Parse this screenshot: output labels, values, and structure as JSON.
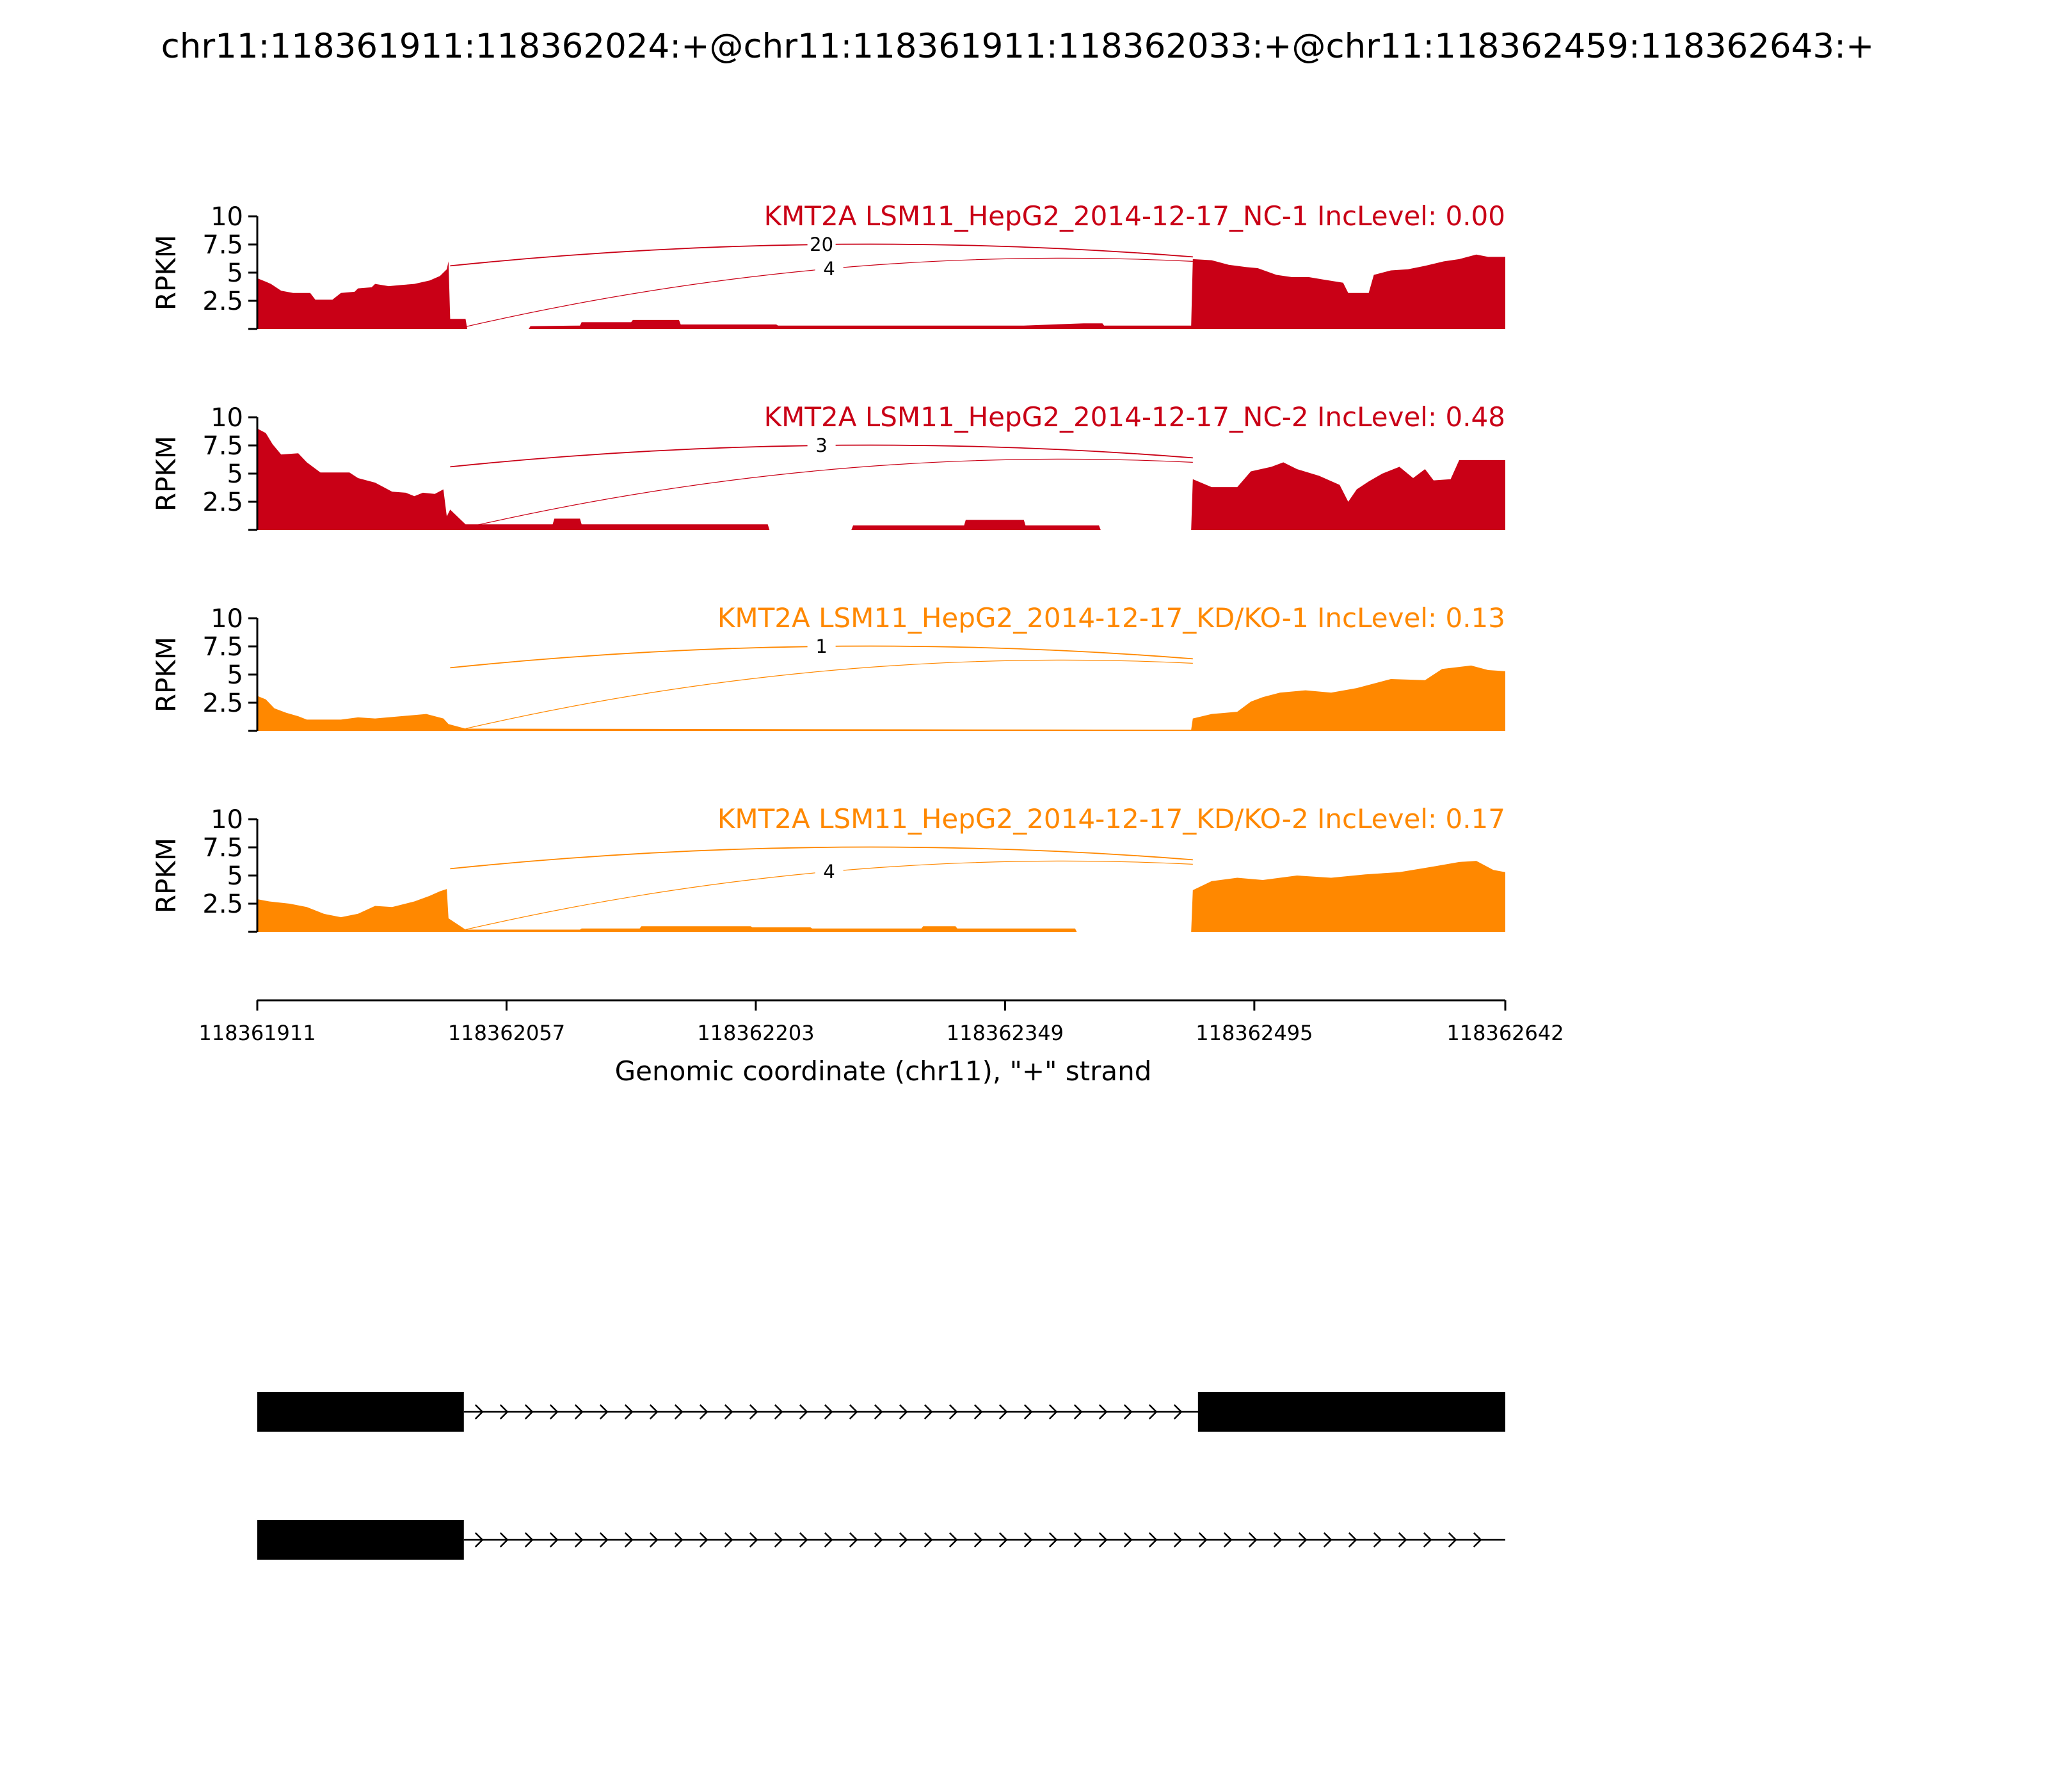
{
  "chart_data": {
    "type": "area",
    "title": "chr11:118361911:118362024:+@chr11:118361911:118362033:+@chr11:118362459:118362643:+",
    "ylabel": "RPKM",
    "xlabel": "Genomic coordinate (chr11), \"+\" strand",
    "xlim": [
      118361911,
      118362642
    ],
    "ylim": [
      0,
      10
    ],
    "x_ticks": [
      118361911,
      118362057,
      118362203,
      118362349,
      118362495,
      118362642
    ],
    "y_ticks": [
      2.5,
      5,
      7.5,
      10
    ],
    "y_tick_labels": [
      "2.5",
      "5",
      "7.5",
      "10"
    ],
    "colors": {
      "NC": "#c90016",
      "KD": "#ff8800"
    },
    "panels": [
      {
        "label": "KMT2A LSM11_HepG2_2014-12-17_NC-1 IncLevel: 0.00",
        "group": "NC",
        "coverage": [
          [
            118361911,
            4.5
          ],
          [
            118361916,
            4.2
          ],
          [
            118361919,
            4.0
          ],
          [
            118361925,
            3.4
          ],
          [
            118361932,
            3.2
          ],
          [
            118361942,
            3.2
          ],
          [
            118361945,
            2.6
          ],
          [
            118361955,
            2.6
          ],
          [
            118361960,
            3.2
          ],
          [
            118361968,
            3.3
          ],
          [
            118361970,
            3.6
          ],
          [
            118361978,
            3.7
          ],
          [
            118361980,
            4.0
          ],
          [
            118361988,
            3.8
          ],
          [
            118361995,
            3.9
          ],
          [
            118362003,
            4.0
          ],
          [
            118362012,
            4.3
          ],
          [
            118362018,
            4.7
          ],
          [
            118362022,
            5.3
          ],
          [
            118362023,
            6.0
          ],
          [
            118362024,
            0.9
          ],
          [
            118362033,
            0.9
          ],
          [
            118362034,
            0.0
          ],
          [
            118362070,
            0.0
          ],
          [
            118362071,
            0.25
          ],
          [
            118362100,
            0.3
          ],
          [
            118362101,
            0.6
          ],
          [
            118362130,
            0.6
          ],
          [
            118362131,
            0.8
          ],
          [
            118362158,
            0.8
          ],
          [
            118362159,
            0.4
          ],
          [
            118362215,
            0.4
          ],
          [
            118362216,
            0.3
          ],
          [
            118362260,
            0.3
          ],
          [
            118362275,
            0.3
          ],
          [
            118362320,
            0.3
          ],
          [
            118362360,
            0.3
          ],
          [
            118362395,
            0.5
          ],
          [
            118362406,
            0.5
          ],
          [
            118362407,
            0.3
          ],
          [
            118362458,
            0.3
          ],
          [
            118362459,
            6.2
          ],
          [
            118362470,
            6.1
          ],
          [
            118362480,
            5.7
          ],
          [
            118362490,
            5.5
          ],
          [
            118362497,
            5.4
          ],
          [
            118362508,
            4.8
          ],
          [
            118362517,
            4.6
          ],
          [
            118362527,
            4.6
          ],
          [
            118362535,
            4.4
          ],
          [
            118362547,
            4.1
          ],
          [
            118362550,
            3.2
          ],
          [
            118362562,
            3.2
          ],
          [
            118362565,
            4.8
          ],
          [
            118362575,
            5.2
          ],
          [
            118362585,
            5.3
          ],
          [
            118362595,
            5.6
          ],
          [
            118362606,
            6.0
          ],
          [
            118362615,
            6.2
          ],
          [
            118362625,
            6.6
          ],
          [
            118362632,
            6.4
          ],
          [
            118362642,
            6.4
          ]
        ],
        "junctions": [
          {
            "count": "20",
            "start": 118362024,
            "end": 118362459
          },
          {
            "count": "4",
            "start": 118362033,
            "end": 118362459
          }
        ]
      },
      {
        "label": "KMT2A LSM11_HepG2_2014-12-17_NC-2 IncLevel: 0.48",
        "group": "NC",
        "coverage": [
          [
            118361911,
            9.0
          ],
          [
            118361916,
            8.6
          ],
          [
            118361920,
            7.6
          ],
          [
            118361925,
            6.7
          ],
          [
            118361935,
            6.8
          ],
          [
            118361940,
            6.0
          ],
          [
            118361948,
            5.1
          ],
          [
            118361965,
            5.1
          ],
          [
            118361970,
            4.6
          ],
          [
            118361980,
            4.2
          ],
          [
            118361990,
            3.4
          ],
          [
            118361998,
            3.3
          ],
          [
            118362003,
            3.0
          ],
          [
            118362008,
            3.3
          ],
          [
            118362015,
            3.2
          ],
          [
            118362020,
            3.6
          ],
          [
            118362022,
            1.2
          ],
          [
            118362024,
            1.8
          ],
          [
            118362033,
            0.5
          ],
          [
            118362084,
            0.5
          ],
          [
            118362085,
            1.0
          ],
          [
            118362100,
            1.0
          ],
          [
            118362101,
            0.5
          ],
          [
            118362210,
            0.5
          ],
          [
            118362211,
            0.0
          ],
          [
            118362259,
            0.0
          ],
          [
            118362260,
            0.4
          ],
          [
            118362325,
            0.4
          ],
          [
            118362326,
            0.9
          ],
          [
            118362360,
            0.9
          ],
          [
            118362361,
            0.4
          ],
          [
            118362404,
            0.4
          ],
          [
            118362405,
            0.0
          ],
          [
            118362458,
            0.0
          ],
          [
            118362459,
            4.5
          ],
          [
            118362470,
            3.8
          ],
          [
            118362485,
            3.8
          ],
          [
            118362493,
            5.2
          ],
          [
            118362505,
            5.6
          ],
          [
            118362512,
            6.0
          ],
          [
            118362520,
            5.4
          ],
          [
            118362533,
            4.8
          ],
          [
            118362545,
            4.0
          ],
          [
            118362550,
            2.5
          ],
          [
            118362555,
            3.6
          ],
          [
            118362562,
            4.3
          ],
          [
            118362570,
            5.0
          ],
          [
            118362580,
            5.6
          ],
          [
            118362588,
            4.6
          ],
          [
            118362595,
            5.4
          ],
          [
            118362600,
            4.4
          ],
          [
            118362610,
            4.5
          ],
          [
            118362615,
            6.2
          ],
          [
            118362642,
            6.2
          ]
        ],
        "junctions": [
          {
            "count": "3",
            "start": 118362024,
            "end": 118362459
          },
          {
            "count": "",
            "start": 118362033,
            "end": 118362459
          }
        ]
      },
      {
        "label": "KMT2A LSM11_HepG2_2014-12-17_KD/KO-1 IncLevel: 0.13",
        "group": "KD",
        "coverage": [
          [
            118361911,
            3.1
          ],
          [
            118361916,
            2.8
          ],
          [
            118361921,
            2.0
          ],
          [
            118361928,
            1.6
          ],
          [
            118361935,
            1.3
          ],
          [
            118361940,
            1.0
          ],
          [
            118361960,
            1.0
          ],
          [
            118361970,
            1.2
          ],
          [
            118361980,
            1.1
          ],
          [
            118361995,
            1.3
          ],
          [
            118362010,
            1.5
          ],
          [
            118362020,
            1.1
          ],
          [
            118362023,
            0.6
          ],
          [
            118362033,
            0.2
          ],
          [
            118362458,
            0.1
          ],
          [
            118362459,
            1.1
          ],
          [
            118362470,
            1.5
          ],
          [
            118362485,
            1.7
          ],
          [
            118362493,
            2.6
          ],
          [
            118362500,
            3.0
          ],
          [
            118362510,
            3.4
          ],
          [
            118362525,
            3.6
          ],
          [
            118362540,
            3.4
          ],
          [
            118362555,
            3.8
          ],
          [
            118362575,
            4.6
          ],
          [
            118362595,
            4.5
          ],
          [
            118362605,
            5.5
          ],
          [
            118362622,
            5.8
          ],
          [
            118362632,
            5.4
          ],
          [
            118362642,
            5.3
          ]
        ],
        "junctions": [
          {
            "count": "1",
            "start": 118362024,
            "end": 118362459
          },
          {
            "count": "",
            "start": 118362033,
            "end": 118362459
          }
        ]
      },
      {
        "label": "KMT2A LSM11_HepG2_2014-12-17_KD/KO-2 IncLevel: 0.17",
        "group": "KD",
        "coverage": [
          [
            118361911,
            2.9
          ],
          [
            118361918,
            2.7
          ],
          [
            118361930,
            2.5
          ],
          [
            118361940,
            2.2
          ],
          [
            118361950,
            1.6
          ],
          [
            118361960,
            1.3
          ],
          [
            118361970,
            1.6
          ],
          [
            118361980,
            2.3
          ],
          [
            118361990,
            2.2
          ],
          [
            118362003,
            2.7
          ],
          [
            118362012,
            3.2
          ],
          [
            118362018,
            3.6
          ],
          [
            118362022,
            3.8
          ],
          [
            118362023,
            1.2
          ],
          [
            118362033,
            0.2
          ],
          [
            118362100,
            0.2
          ],
          [
            118362101,
            0.3
          ],
          [
            118362135,
            0.3
          ],
          [
            118362136,
            0.5
          ],
          [
            118362200,
            0.5
          ],
          [
            118362201,
            0.4
          ],
          [
            118362235,
            0.4
          ],
          [
            118362236,
            0.3
          ],
          [
            118362300,
            0.3
          ],
          [
            118362301,
            0.5
          ],
          [
            118362320,
            0.5
          ],
          [
            118362321,
            0.3
          ],
          [
            118362390,
            0.3
          ],
          [
            118362391,
            0.0
          ],
          [
            118362458,
            0.0
          ],
          [
            118362459,
            3.7
          ],
          [
            118362470,
            4.5
          ],
          [
            118362485,
            4.8
          ],
          [
            118362500,
            4.6
          ],
          [
            118362520,
            5.0
          ],
          [
            118362540,
            4.8
          ],
          [
            118362560,
            5.1
          ],
          [
            118362580,
            5.3
          ],
          [
            118362600,
            5.8
          ],
          [
            118362615,
            6.2
          ],
          [
            118362625,
            6.3
          ],
          [
            118362635,
            5.5
          ],
          [
            118362642,
            5.3
          ]
        ],
        "junctions": [
          {
            "count": "",
            "start": 118362024,
            "end": 118362459
          },
          {
            "count": "4",
            "start": 118362033,
            "end": 118362459
          }
        ]
      }
    ],
    "transcripts": [
      {
        "exons": [
          [
            118361911,
            118362032
          ],
          [
            118362462,
            118362642
          ]
        ]
      },
      {
        "exons": [
          [
            118361911,
            118362032
          ]
        ]
      }
    ]
  }
}
